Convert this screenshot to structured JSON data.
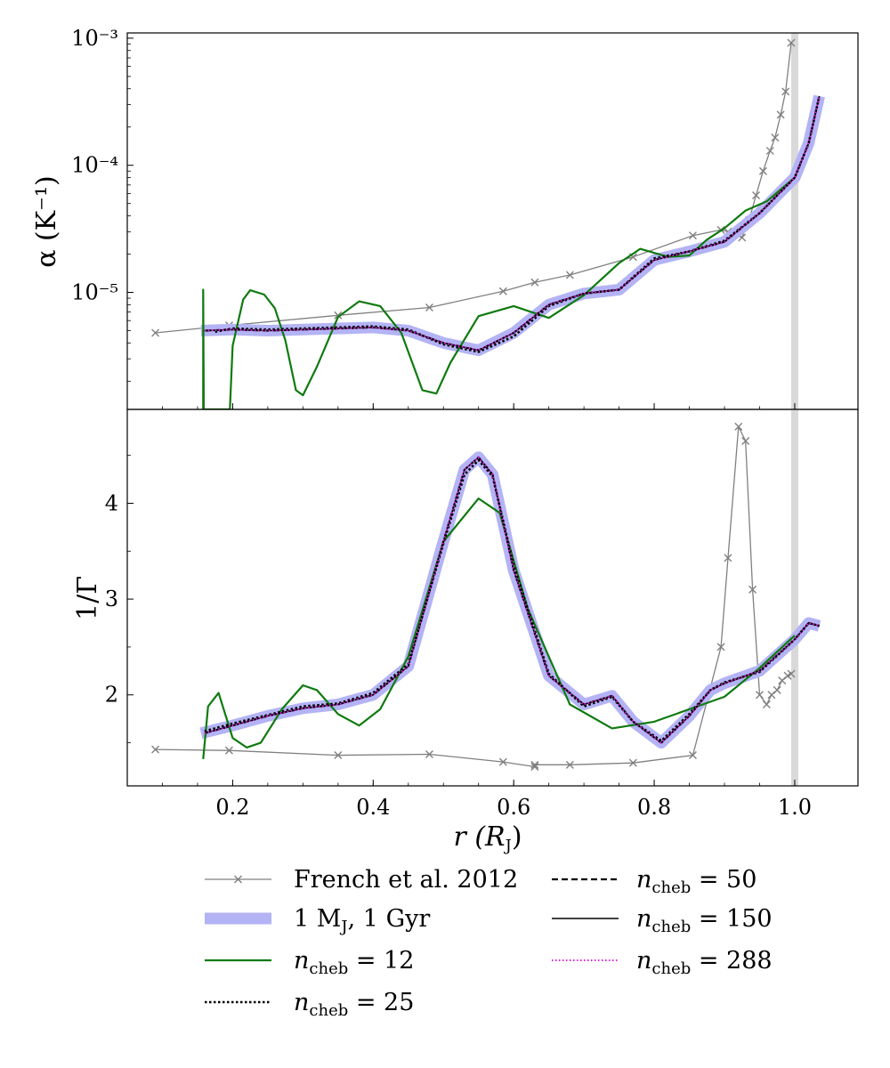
{
  "chart_data": [
    {
      "type": "line",
      "panel": "top",
      "ylabel": "α (K⁻¹)",
      "yscale": "log",
      "xlim": [
        0.05,
        1.09
      ],
      "ylim": [
        1.2e-06,
        0.0011
      ],
      "ytick_labels": [
        "10⁻³",
        "10⁻⁴",
        "10⁻⁵"
      ],
      "ytick_values": [
        0.001,
        0.0001,
        1e-05
      ],
      "surface_band_x": 1.0,
      "series": [
        {
          "name": "French et al. 2012",
          "style": "gray-x",
          "x": [
            0.09,
            0.195,
            0.35,
            0.48,
            0.585,
            0.63,
            0.68,
            0.77,
            0.855,
            0.895,
            0.905,
            0.925,
            0.935,
            0.945,
            0.955,
            0.965,
            0.972,
            0.98,
            0.987,
            0.995
          ],
          "y": [
            4.8e-06,
            5.5e-06,
            6.6e-06,
            7.6e-06,
            1.02e-05,
            1.2e-05,
            1.37e-05,
            1.9e-05,
            2.8e-05,
            3.1e-05,
            3e-05,
            2.7e-05,
            3.7e-05,
            5.8e-05,
            9e-05,
            0.00013,
            0.000165,
            0.00025,
            0.00038,
            0.00092
          ]
        },
        {
          "name": "1 M_J, 1 Gyr",
          "style": "model",
          "x": [
            0.155,
            0.2,
            0.25,
            0.3,
            0.35,
            0.4,
            0.45,
            0.5,
            0.55,
            0.6,
            0.65,
            0.7,
            0.75,
            0.8,
            0.85,
            0.9,
            0.95,
            1.0,
            1.02,
            1.035
          ],
          "y": [
            5e-06,
            5.1e-06,
            5e-06,
            5.1e-06,
            5.2e-06,
            5.3e-06,
            5e-06,
            4e-06,
            3.5e-06,
            4.8e-06,
            8e-06,
            9.8e-06,
            1.05e-05,
            1.8e-05,
            2.1e-05,
            2.5e-05,
            4.2e-05,
            8e-05,
            0.00015,
            0.00035
          ]
        },
        {
          "name": "n_cheb = 12",
          "style": "green",
          "x": [
            0.158,
            0.158,
            0.159,
            0.18,
            0.196,
            0.2,
            0.215,
            0.225,
            0.245,
            0.26,
            0.275,
            0.29,
            0.3,
            0.32,
            0.35,
            0.38,
            0.41,
            0.44,
            0.47,
            0.49,
            0.51,
            0.55,
            0.6,
            0.65,
            0.7,
            0.75,
            0.78,
            0.82,
            0.85,
            0.875,
            0.9,
            0.93,
            0.96,
            1.0
          ],
          "y": [
            1.2e-06,
            1.05e-05,
            1.2e-06,
            1.2e-06,
            1.2e-06,
            3.8e-06,
            8.8e-06,
            1.04e-05,
            9.6e-06,
            7.5e-06,
            4.2e-06,
            1.7e-06,
            1.55e-06,
            2.6e-06,
            6.4e-06,
            8.5e-06,
            7.8e-06,
            4.8e-06,
            1.7e-06,
            1.6e-06,
            2.8e-06,
            6.5e-06,
            7.8e-06,
            6.3e-06,
            9.5e-06,
            1.7e-05,
            2.2e-05,
            1.9e-05,
            1.95e-05,
            2.6e-05,
            3.2e-05,
            4.4e-05,
            5.2e-05,
            8e-05
          ]
        },
        {
          "name": "n_cheb = 25",
          "style": "dotted-black",
          "x": [
            0.175,
            0.2,
            0.25,
            0.3,
            0.35,
            0.4,
            0.45,
            0.5,
            0.55,
            0.6,
            0.65,
            0.7,
            0.75,
            0.8,
            0.85,
            0.9,
            0.95,
            1.0,
            1.02,
            1.035
          ],
          "y": [
            4.9e-06,
            5.2e-06,
            5.1e-06,
            5.2e-06,
            5.3e-06,
            5.4e-06,
            5.1e-06,
            3.9e-06,
            3.4e-06,
            4.5e-06,
            7.8e-06,
            9.8e-06,
            1.05e-05,
            1.85e-05,
            2.1e-05,
            2.55e-05,
            4.2e-05,
            8e-05,
            0.00015,
            0.00035
          ]
        },
        {
          "name": "n_cheb = 50",
          "style": "dashed-black",
          "x": [
            0.16,
            0.2,
            0.25,
            0.3,
            0.35,
            0.4,
            0.45,
            0.5,
            0.55,
            0.6,
            0.65,
            0.7,
            0.75,
            0.8,
            0.85,
            0.9,
            0.95,
            1.0,
            1.02,
            1.035
          ],
          "y": [
            5e-06,
            5.1e-06,
            5e-06,
            5.1e-06,
            5.2e-06,
            5.3e-06,
            5e-06,
            4e-06,
            3.5e-06,
            4.8e-06,
            8e-06,
            9.8e-06,
            1.05e-05,
            1.8e-05,
            2.1e-05,
            2.5e-05,
            4.2e-05,
            8e-05,
            0.00015,
            0.00035
          ]
        },
        {
          "name": "n_cheb = 150",
          "style": "solid-black",
          "x": [
            0.16,
            0.2,
            0.25,
            0.3,
            0.35,
            0.4,
            0.45,
            0.5,
            0.55,
            0.6,
            0.65,
            0.7,
            0.75,
            0.8,
            0.85,
            0.9,
            0.95,
            1.0,
            1.02,
            1.035
          ],
          "y": [
            5e-06,
            5.1e-06,
            5e-06,
            5.1e-06,
            5.2e-06,
            5.3e-06,
            5e-06,
            4e-06,
            3.5e-06,
            4.8e-06,
            8e-06,
            9.8e-06,
            1.05e-05,
            1.8e-05,
            2.1e-05,
            2.5e-05,
            4.2e-05,
            8e-05,
            0.00015,
            0.00035
          ]
        },
        {
          "name": "n_cheb = 288",
          "style": "dotted-magenta",
          "x": [
            0.16,
            0.2,
            0.25,
            0.3,
            0.35,
            0.4,
            0.45,
            0.5,
            0.55,
            0.6,
            0.65,
            0.7,
            0.75,
            0.8,
            0.85,
            0.9,
            0.95,
            1.0,
            1.02,
            1.035
          ],
          "y": [
            5e-06,
            5.1e-06,
            5e-06,
            5.1e-06,
            5.2e-06,
            5.3e-06,
            5e-06,
            4e-06,
            3.5e-06,
            4.8e-06,
            8e-06,
            9.8e-06,
            1.05e-05,
            1.8e-05,
            2.1e-05,
            2.5e-05,
            4.2e-05,
            8e-05,
            0.00015,
            0.00035
          ]
        }
      ]
    },
    {
      "type": "line",
      "panel": "bottom",
      "ylabel": "1/Γ",
      "xlabel": "r (R",
      "xlabel_sub": "J",
      "xlabel_close": ")",
      "xlim": [
        0.05,
        1.09
      ],
      "ylim": [
        1.05,
        4.98
      ],
      "xtick_labels": [
        "0.2",
        "0.4",
        "0.6",
        "0.8",
        "1.0"
      ],
      "xtick_values": [
        0.2,
        0.4,
        0.6,
        0.8,
        1.0
      ],
      "ytick_labels": [
        "2",
        "3",
        "4"
      ],
      "ytick_values": [
        2,
        3,
        4
      ],
      "surface_band_x": 1.0,
      "series": [
        {
          "name": "French et al. 2012",
          "style": "gray-x",
          "x": [
            0.09,
            0.195,
            0.35,
            0.48,
            0.585,
            0.63,
            0.63,
            0.68,
            0.77,
            0.855,
            0.895,
            0.905,
            0.92,
            0.93,
            0.94,
            0.95,
            0.96,
            0.967,
            0.975,
            0.982,
            0.99,
            0.995
          ],
          "y": [
            1.43,
            1.42,
            1.37,
            1.38,
            1.3,
            1.25,
            1.27,
            1.27,
            1.29,
            1.37,
            2.5,
            3.43,
            4.8,
            4.65,
            3.1,
            2.0,
            1.9,
            2.0,
            2.05,
            2.15,
            2.2,
            2.22
          ]
        },
        {
          "name": "1 M_J, 1 Gyr",
          "style": "model",
          "x": [
            0.155,
            0.2,
            0.25,
            0.3,
            0.35,
            0.4,
            0.45,
            0.5,
            0.53,
            0.55,
            0.57,
            0.6,
            0.65,
            0.7,
            0.74,
            0.77,
            0.81,
            0.85,
            0.88,
            0.9,
            0.95,
            1.0,
            1.02,
            1.035
          ],
          "y": [
            1.6,
            1.68,
            1.78,
            1.86,
            1.9,
            2.0,
            2.3,
            3.6,
            4.35,
            4.48,
            4.3,
            3.3,
            2.2,
            1.9,
            1.99,
            1.72,
            1.5,
            1.78,
            2.05,
            2.12,
            2.25,
            2.58,
            2.75,
            2.72
          ]
        },
        {
          "name": "n_cheb = 12",
          "style": "green",
          "x": [
            0.158,
            0.165,
            0.18,
            0.2,
            0.22,
            0.24,
            0.27,
            0.3,
            0.32,
            0.35,
            0.38,
            0.41,
            0.45,
            0.5,
            0.55,
            0.58,
            0.62,
            0.68,
            0.74,
            0.8,
            0.85,
            0.9,
            0.95,
            1.0
          ],
          "y": [
            1.33,
            1.88,
            2.02,
            1.55,
            1.45,
            1.5,
            1.85,
            2.1,
            2.05,
            1.8,
            1.68,
            1.85,
            2.4,
            3.6,
            4.05,
            3.9,
            2.9,
            1.9,
            1.65,
            1.72,
            1.85,
            1.98,
            2.28,
            2.62
          ]
        },
        {
          "name": "n_cheb = 25",
          "style": "dotted-black",
          "x": [
            0.16,
            0.2,
            0.25,
            0.3,
            0.35,
            0.4,
            0.45,
            0.5,
            0.53,
            0.55,
            0.57,
            0.6,
            0.65,
            0.7,
            0.74,
            0.77,
            0.81,
            0.85,
            0.88,
            0.9,
            0.95,
            1.0,
            1.02,
            1.035
          ],
          "y": [
            1.62,
            1.7,
            1.79,
            1.88,
            1.91,
            2.02,
            2.32,
            3.58,
            4.3,
            4.45,
            4.28,
            3.35,
            2.22,
            1.88,
            1.98,
            1.72,
            1.52,
            1.8,
            2.05,
            2.13,
            2.24,
            2.58,
            2.75,
            2.72
          ]
        },
        {
          "name": "n_cheb = 50",
          "style": "dashed-black",
          "x": [
            0.16,
            0.2,
            0.25,
            0.3,
            0.35,
            0.4,
            0.45,
            0.5,
            0.53,
            0.55,
            0.57,
            0.6,
            0.65,
            0.7,
            0.74,
            0.77,
            0.81,
            0.85,
            0.88,
            0.9,
            0.95,
            1.0,
            1.02,
            1.035
          ],
          "y": [
            1.6,
            1.68,
            1.78,
            1.86,
            1.9,
            2.0,
            2.3,
            3.6,
            4.35,
            4.48,
            4.3,
            3.3,
            2.2,
            1.9,
            1.99,
            1.72,
            1.5,
            1.78,
            2.05,
            2.12,
            2.25,
            2.58,
            2.75,
            2.72
          ]
        },
        {
          "name": "n_cheb = 150",
          "style": "solid-black",
          "x": [
            0.16,
            0.2,
            0.25,
            0.3,
            0.35,
            0.4,
            0.45,
            0.5,
            0.53,
            0.55,
            0.57,
            0.6,
            0.65,
            0.7,
            0.74,
            0.77,
            0.81,
            0.85,
            0.88,
            0.9,
            0.95,
            1.0,
            1.02,
            1.035
          ],
          "y": [
            1.6,
            1.68,
            1.78,
            1.86,
            1.9,
            2.0,
            2.3,
            3.6,
            4.35,
            4.48,
            4.3,
            3.3,
            2.2,
            1.9,
            1.99,
            1.72,
            1.5,
            1.78,
            2.05,
            2.12,
            2.25,
            2.58,
            2.75,
            2.72
          ]
        },
        {
          "name": "n_cheb = 288",
          "style": "dotted-magenta",
          "x": [
            0.16,
            0.2,
            0.25,
            0.3,
            0.35,
            0.4,
            0.45,
            0.5,
            0.53,
            0.55,
            0.57,
            0.6,
            0.65,
            0.7,
            0.74,
            0.77,
            0.81,
            0.85,
            0.88,
            0.9,
            0.95,
            1.0,
            1.02,
            1.035
          ],
          "y": [
            1.6,
            1.68,
            1.78,
            1.86,
            1.9,
            2.0,
            2.3,
            3.6,
            4.35,
            4.48,
            4.3,
            3.3,
            2.2,
            1.9,
            1.99,
            1.72,
            1.5,
            1.78,
            2.05,
            2.12,
            2.25,
            2.58,
            2.75,
            2.72
          ]
        }
      ]
    }
  ],
  "legend": {
    "placement": "bottom",
    "entries": [
      {
        "label": "French et al. 2012",
        "style": "gray-x"
      },
      {
        "label": "1 M",
        "sub": "J",
        "rest": ", 1 Gyr",
        "style": "model"
      },
      {
        "label": "n",
        "sub": "cheb",
        "rest": " = 12",
        "style": "green"
      },
      {
        "label": "n",
        "sub": "cheb",
        "rest": " = 25",
        "style": "dotted-black"
      },
      {
        "label": "n",
        "sub": "cheb",
        "rest": " = 50",
        "style": "dashed-black"
      },
      {
        "label": "n",
        "sub": "cheb",
        "rest": " = 150",
        "style": "solid-black"
      },
      {
        "label": "n",
        "sub": "cheb",
        "rest": " = 288",
        "style": "dotted-magenta"
      }
    ]
  },
  "styles": {
    "gray-x": {
      "color": "#808080"
    },
    "model": {
      "color": "#b3b3f5"
    },
    "green": {
      "color": "#0f7a0f"
    },
    "dotted-black": {
      "color": "#000000"
    },
    "dashed-black": {
      "color": "#000000"
    },
    "solid-black": {
      "color": "#000000"
    },
    "dotted-magenta": {
      "color": "#e020e0"
    },
    "surface_band": {
      "color": "#d9d9d9"
    }
  }
}
